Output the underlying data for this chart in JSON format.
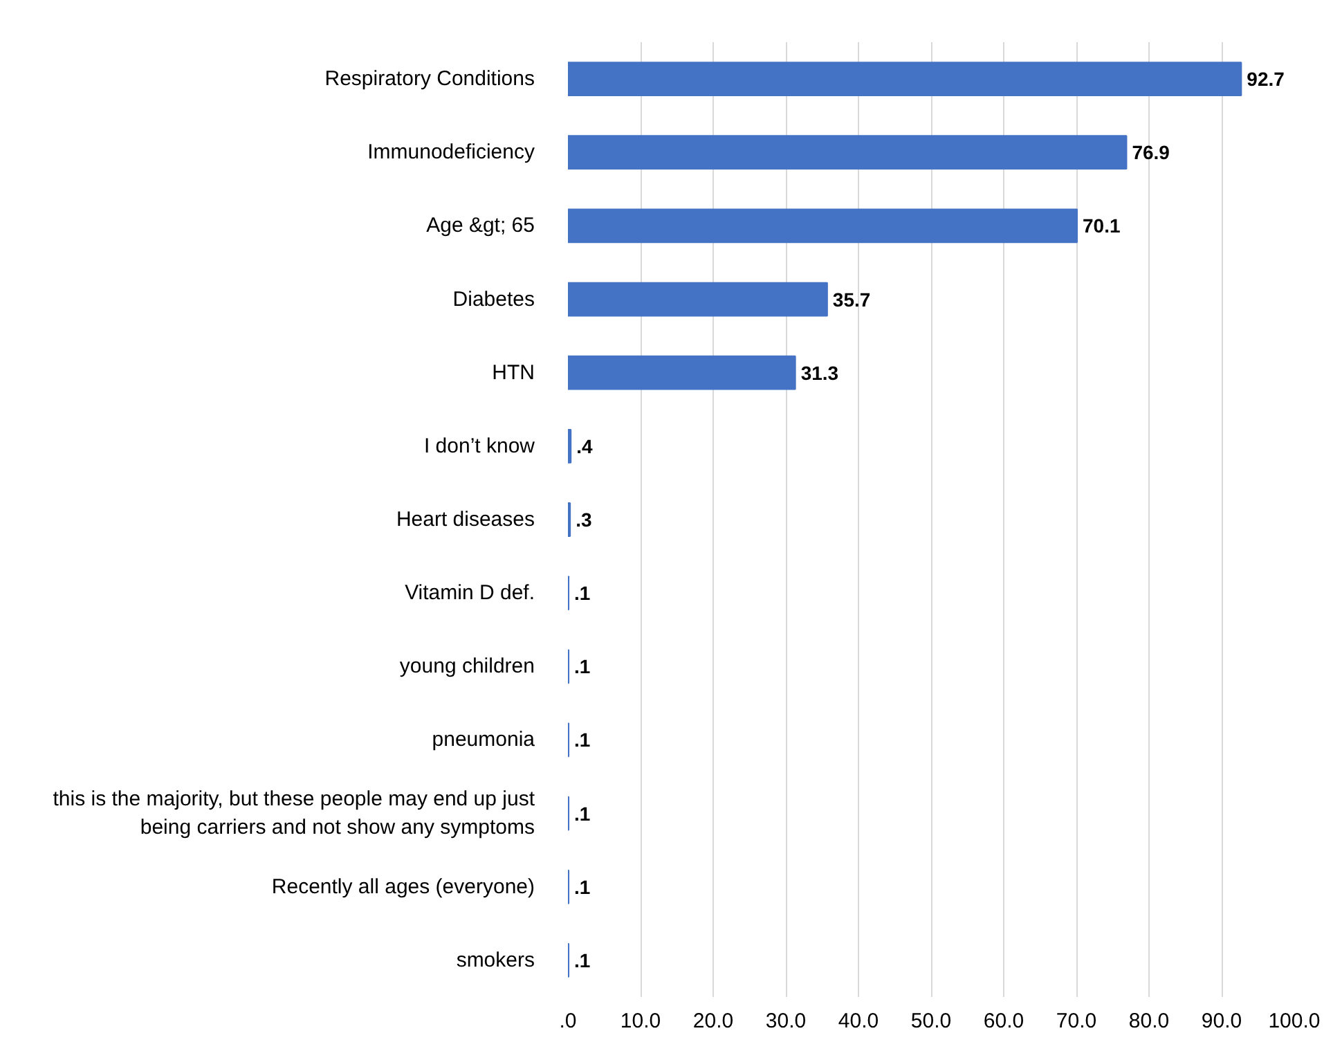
{
  "chart_data": {
    "type": "bar",
    "orientation": "horizontal",
    "categories": [
      "Respiratory Conditions",
      "Immunodeficiency",
      "Age &gt; 65",
      "Diabetes",
      "HTN",
      "I don’t know",
      "Heart diseases",
      "Vitamin D def.",
      "young children",
      "pneumonia",
      "this is the majority, but these people may end up just being carriers and not show any symptoms",
      "Recently all ages (everyone)",
      "smokers"
    ],
    "values": [
      92.7,
      76.9,
      70.1,
      35.7,
      31.3,
      0.4,
      0.3,
      0.1,
      0.1,
      0.1,
      0.1,
      0.1,
      0.1
    ],
    "value_labels": [
      "92.7",
      "76.9",
      "70.1",
      "35.7",
      "31.3",
      ".4",
      ".3",
      ".1",
      ".1",
      ".1",
      ".1",
      ".1",
      ".1"
    ],
    "color": "#4472c4",
    "xlim": [
      0,
      100
    ],
    "xticks": [
      {
        "value": 0,
        "label": ".0"
      },
      {
        "value": 10,
        "label": "10.0"
      },
      {
        "value": 20,
        "label": "20.0"
      },
      {
        "value": 30,
        "label": "30.0"
      },
      {
        "value": 40,
        "label": "40.0"
      },
      {
        "value": 50,
        "label": "50.0"
      },
      {
        "value": 60,
        "label": "60.0"
      },
      {
        "value": 70,
        "label": "70.0"
      },
      {
        "value": 80,
        "label": "80.0"
      },
      {
        "value": 90,
        "label": "90.0"
      },
      {
        "value": 100,
        "label": "100.0"
      }
    ],
    "grid": "x"
  }
}
